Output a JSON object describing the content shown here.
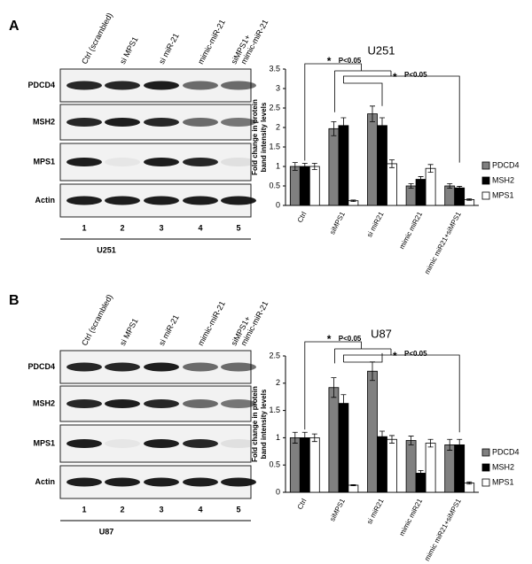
{
  "figure": {
    "panels": [
      {
        "label": "A",
        "lanes": [
          [
            "Ctrl (scrambled)"
          ],
          [
            "si MPS1"
          ],
          [
            "si miR-21"
          ],
          [
            "mimic-miR-21"
          ],
          [
            "siMPS1+",
            "mimic-miR-21"
          ]
        ],
        "rows": [
          "PDCD4",
          "MSH2",
          "MPS1",
          "Actin"
        ],
        "lane_numbers": [
          1,
          2,
          3,
          4,
          5
        ],
        "cell_line": "U251"
      },
      {
        "label": "B",
        "lanes": [
          [
            "Ctrl (scrambled)"
          ],
          [
            "si MPS1"
          ],
          [
            "si miR-21"
          ],
          [
            "mimic-miR-21"
          ],
          [
            "siMPS1+",
            "mimic-miR-21"
          ]
        ],
        "rows": [
          "PDCD4",
          "MSH2",
          "MPS1",
          "Actin"
        ],
        "lane_numbers": [
          1,
          2,
          3,
          4,
          5
        ],
        "cell_line": "U87"
      }
    ]
  },
  "chart_data": [
    {
      "type": "bar",
      "title": "U251",
      "ylabel": [
        "Fold change in protein",
        "band intensity levels"
      ],
      "categories": [
        "Ctrl",
        "siMPS1",
        "si miR21",
        "mimic miR21",
        "mimic miR21+siMPS1"
      ],
      "series": [
        {
          "name": "PDCD4",
          "color": "#808080",
          "values": [
            1.0,
            1.97,
            2.35,
            0.5,
            0.5
          ],
          "errors": [
            0.1,
            0.18,
            0.2,
            0.06,
            0.06
          ]
        },
        {
          "name": "MSH2",
          "color": "#000000",
          "values": [
            1.0,
            2.05,
            2.05,
            0.67,
            0.45
          ],
          "errors": [
            0.08,
            0.2,
            0.2,
            0.07,
            0.04
          ]
        },
        {
          "name": "MPS1",
          "color": "#ffffff",
          "values": [
            1.0,
            0.12,
            1.07,
            0.95,
            0.15
          ],
          "errors": [
            0.08,
            0.02,
            0.1,
            0.1,
            0.02
          ]
        }
      ],
      "ylim": [
        0,
        3.5
      ],
      "yticks": [
        0,
        0.5,
        1,
        1.5,
        2,
        2.5,
        3,
        3.5
      ],
      "legend": "right",
      "annotations": [
        "*",
        "P<0.05",
        "*",
        "P<0.05"
      ]
    },
    {
      "type": "bar",
      "title": "U87",
      "ylabel": [
        "Fold change in protein",
        "band intensity levels"
      ],
      "categories": [
        "Ctrl",
        "siMPS1",
        "si miR21",
        "mimic miR21",
        "mimic miR21+siMPS1"
      ],
      "series": [
        {
          "name": "PDCD4",
          "color": "#808080",
          "values": [
            1.0,
            1.92,
            2.22,
            0.95,
            0.87
          ],
          "errors": [
            0.1,
            0.18,
            0.17,
            0.08,
            0.1
          ]
        },
        {
          "name": "MSH2",
          "color": "#000000",
          "values": [
            1.0,
            1.63,
            1.02,
            0.35,
            0.87
          ],
          "errors": [
            0.1,
            0.16,
            0.1,
            0.05,
            0.1
          ]
        },
        {
          "name": "MPS1",
          "color": "#ffffff",
          "values": [
            1.0,
            0.13,
            0.97,
            0.9,
            0.17
          ],
          "errors": [
            0.07,
            0.01,
            0.07,
            0.07,
            0.02
          ]
        }
      ],
      "ylim": [
        0,
        2.5
      ],
      "yticks": [
        0,
        0.5,
        1,
        1.5,
        2,
        2.5
      ],
      "legend": "right",
      "annotations": [
        "*",
        "P<0.05",
        "*",
        "P<0.05"
      ]
    }
  ]
}
